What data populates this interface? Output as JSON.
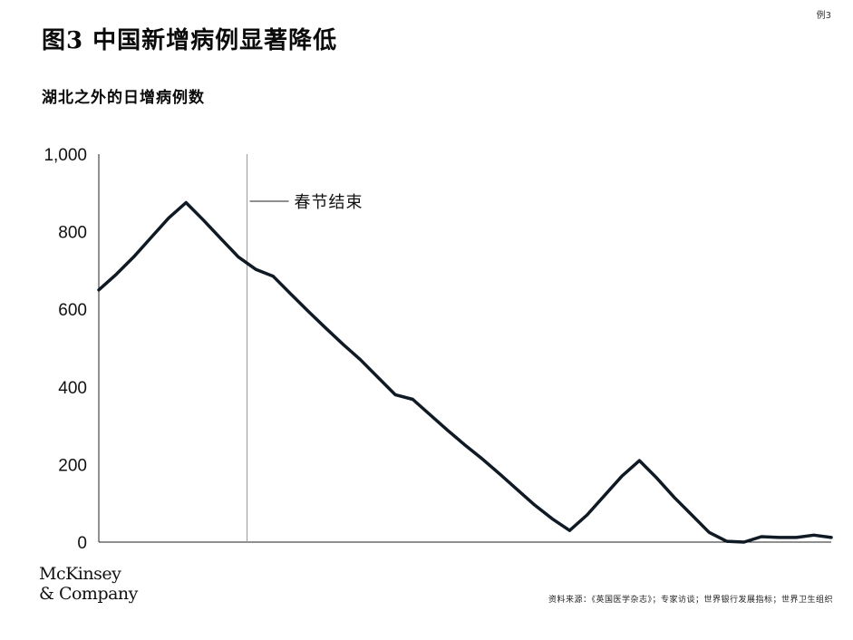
{
  "exhibit_label": "例3",
  "title": "图3 中国新增病例显著降低",
  "subtitle": "湖北之外的日增病例数",
  "logo": {
    "line1": "McKinsey",
    "line2": "& Company"
  },
  "source": "资料来源：《英国医学杂志》；专家访谈；世界银行发展指标；世界卫生组织",
  "colors": {
    "line": "#0f1a24",
    "axis": "#222222",
    "marker_line": "#9a9a9a"
  },
  "chart_data": {
    "type": "line",
    "title": "湖北之外的日增病例数",
    "xlabel": "",
    "ylabel": "",
    "ylim": [
      0,
      1000
    ],
    "yticks": [
      0,
      200,
      400,
      600,
      800,
      1000
    ],
    "ytick_labels": [
      "0",
      "200",
      "400",
      "600",
      "800",
      "1,000"
    ],
    "grid": false,
    "legend": "none",
    "x": [
      0,
      1,
      2,
      3,
      4,
      5,
      6,
      7,
      8,
      9,
      10,
      11,
      12,
      13,
      14,
      15,
      16,
      17,
      18,
      19,
      20,
      21,
      22,
      23,
      24,
      25,
      26,
      27,
      28,
      29,
      30,
      31,
      32,
      33,
      34,
      35,
      36,
      37,
      38,
      39,
      40,
      41,
      42
    ],
    "series": [
      {
        "values": [
          650,
          690,
          735,
          785,
          835,
          875,
          830,
          782,
          735,
          703,
          685,
          640,
          595,
          552,
          510,
          470,
          425,
          380,
          368,
          328,
          288,
          250,
          214,
          175,
          135,
          95,
          60,
          30,
          70,
          120,
          170,
          210,
          165,
          115,
          70,
          25,
          2,
          0,
          14,
          12,
          12,
          18,
          12
        ]
      }
    ],
    "annotations": [
      {
        "x": 8.5,
        "label": "春节结束"
      }
    ]
  }
}
